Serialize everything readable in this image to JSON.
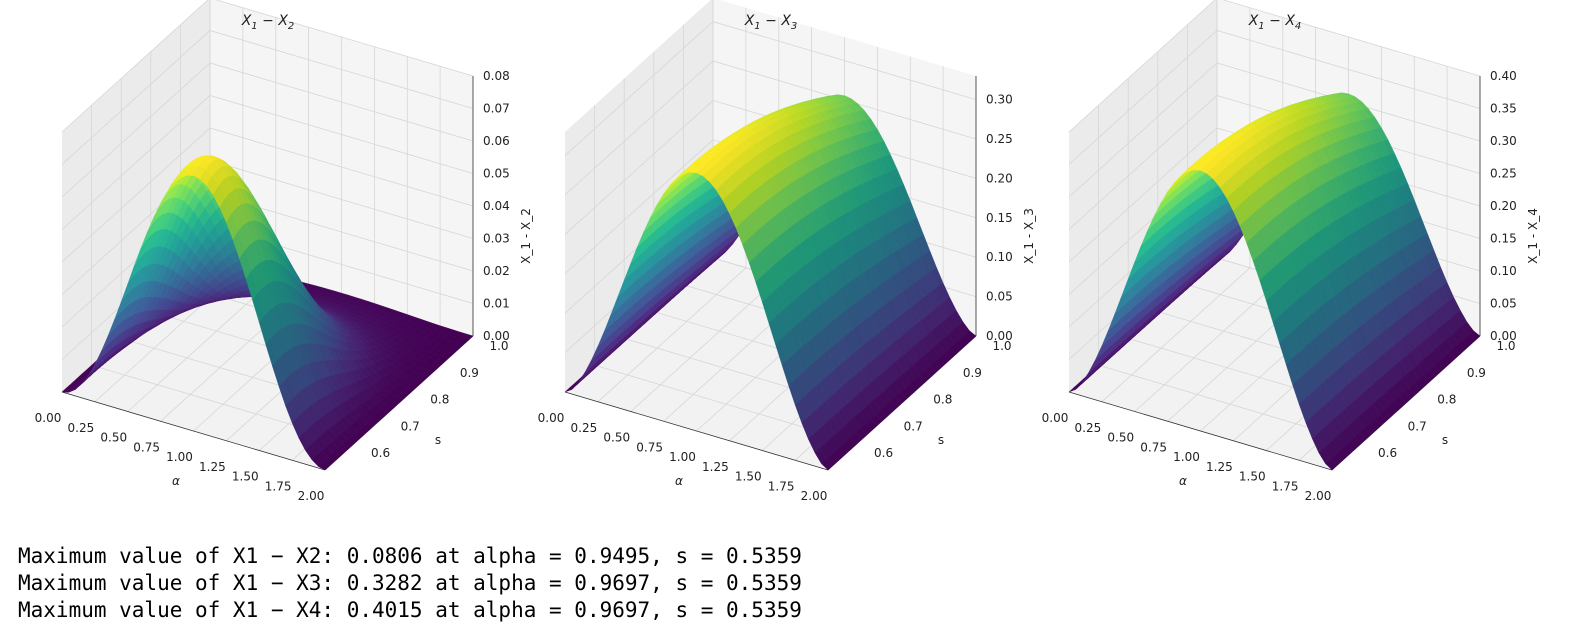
{
  "chart_data": [
    {
      "type": "surface",
      "title": "X_1 − X_2",
      "xlabel": "α",
      "ylabel": "s",
      "zlabel": "X_1 - X_2",
      "xlim": [
        0,
        2
      ],
      "ylim": [
        0.5,
        1.0
      ],
      "zlim": [
        0,
        0.08
      ],
      "x_ticks": [
        "0.00",
        "0.25",
        "0.50",
        "0.75",
        "1.00",
        "1.25",
        "1.50",
        "1.75",
        "2.00"
      ],
      "y_ticks": [
        "0.6",
        "0.7",
        "0.8",
        "0.9",
        "1.0"
      ],
      "z_ticks": [
        "0.00",
        "0.01",
        "0.02",
        "0.03",
        "0.04",
        "0.05",
        "0.06",
        "0.07",
        "0.08"
      ],
      "max": {
        "value": 0.0806,
        "alpha": 0.9495,
        "s": 0.5359
      },
      "colormap": "viridis",
      "grid": true
    },
    {
      "type": "surface",
      "title": "X_1 − X_3",
      "xlabel": "α",
      "ylabel": "s",
      "zlabel": "X_1 - X_3",
      "xlim": [
        0,
        2
      ],
      "ylim": [
        0.5,
        1.0
      ],
      "zlim": [
        0,
        0.33
      ],
      "x_ticks": [
        "0.00",
        "0.25",
        "0.50",
        "0.75",
        "1.00",
        "1.25",
        "1.50",
        "1.75",
        "2.00"
      ],
      "y_ticks": [
        "0.6",
        "0.7",
        "0.8",
        "0.9",
        "1.0"
      ],
      "z_ticks": [
        "0.00",
        "0.05",
        "0.10",
        "0.15",
        "0.20",
        "0.25",
        "0.30"
      ],
      "max": {
        "value": 0.3282,
        "alpha": 0.9697,
        "s": 0.5359
      },
      "colormap": "viridis",
      "grid": true
    },
    {
      "type": "surface",
      "title": "X_1 − X_4",
      "xlabel": "α",
      "ylabel": "s",
      "zlabel": "X_1 - X_4",
      "xlim": [
        0,
        2
      ],
      "ylim": [
        0.5,
        1.0
      ],
      "zlim": [
        0,
        0.4
      ],
      "x_ticks": [
        "0.00",
        "0.25",
        "0.50",
        "0.75",
        "1.00",
        "1.25",
        "1.50",
        "1.75",
        "2.00"
      ],
      "y_ticks": [
        "0.6",
        "0.7",
        "0.8",
        "0.9",
        "1.0"
      ],
      "z_ticks": [
        "0.00",
        "0.05",
        "0.10",
        "0.15",
        "0.20",
        "0.25",
        "0.30",
        "0.35",
        "0.40"
      ],
      "max": {
        "value": 0.4015,
        "alpha": 0.9697,
        "s": 0.5359
      },
      "colormap": "viridis",
      "grid": true
    }
  ],
  "output_lines": [
    "Maximum value of X1 − X2: 0.0806 at alpha = 0.9495, s = 0.5359",
    "Maximum value of X1 − X3: 0.3282 at alpha = 0.9697, s = 0.5359",
    "Maximum value of X1 − X4: 0.4015 at alpha = 0.9697, s = 0.5359"
  ]
}
